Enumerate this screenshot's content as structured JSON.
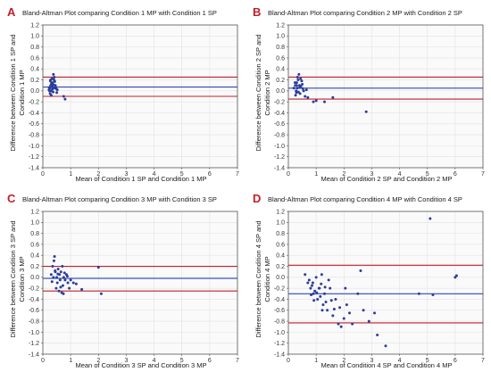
{
  "colors": {
    "background": "#ffffff",
    "plot_background": "#fafafa",
    "frame": "#555555",
    "grid": "#e2e2e2",
    "points": "#2b3d9a",
    "mean_line": "#2f48b5",
    "limit_line": "#c0202a",
    "letter": "#c0202a"
  },
  "chart_data": [
    {
      "letter": "A",
      "type": "scatter",
      "title": "Bland-Altman Plot comparing Condition 1 MP with Condition 1 SP",
      "xlabel": "Mean of Condition 1 SP and Condition 1 MP",
      "ylabel": [
        "Difference between Condition 1 SP and",
        "Condition 1 MP"
      ],
      "xlim": [
        0,
        7
      ],
      "ylim": [
        -1.4,
        1.2
      ],
      "xticks": [
        0,
        1,
        2,
        3,
        4,
        5,
        6,
        7
      ],
      "yticks": [
        1.2,
        1.0,
        0.8,
        0.6,
        0.4,
        0.2,
        0.0,
        -0.2,
        -0.4,
        -0.6,
        -0.8,
        -1.0,
        -1.2,
        -1.4
      ],
      "ytick_labels": [
        "1.2",
        "1.0",
        "0.8",
        "0.6",
        "0.4",
        "0.2",
        "0.0",
        "-0.2",
        "-0.4",
        "-0.6",
        "-0.8",
        "-1.0",
        "-1.2",
        "-1.4"
      ],
      "grid": true,
      "mean_diff": 0.07,
      "upper_loa": 0.25,
      "lower_loa": -0.1,
      "points": [
        [
          0.22,
          0.02
        ],
        [
          0.25,
          0.05
        ],
        [
          0.28,
          0.1
        ],
        [
          0.3,
          0.0
        ],
        [
          0.32,
          0.08
        ],
        [
          0.35,
          0.15
        ],
        [
          0.38,
          0.3
        ],
        [
          0.4,
          0.2
        ],
        [
          0.42,
          0.05
        ],
        [
          0.26,
          -0.05
        ],
        [
          0.3,
          -0.08
        ],
        [
          0.35,
          0.12
        ],
        [
          0.45,
          0.1
        ],
        [
          0.48,
          0.04
        ],
        [
          0.33,
          0.22
        ],
        [
          0.27,
          0.18
        ],
        [
          0.24,
          0.0
        ],
        [
          0.36,
          0.06
        ],
        [
          0.41,
          0.25
        ],
        [
          0.29,
          0.09
        ],
        [
          0.37,
          -0.02
        ],
        [
          0.31,
          0.14
        ],
        [
          0.43,
          0.17
        ],
        [
          0.34,
          0.03
        ],
        [
          0.39,
          0.11
        ],
        [
          0.46,
          0.07
        ],
        [
          0.23,
          0.06
        ],
        [
          0.28,
          0.2
        ],
        [
          0.52,
          0.02
        ],
        [
          0.8,
          -0.15
        ],
        [
          0.75,
          -0.1
        ],
        [
          0.5,
          -0.03
        ]
      ]
    },
    {
      "letter": "B",
      "type": "scatter",
      "title": "Bland-Altman Plot comparing Condition 2 MP with Condition 2 SP",
      "xlabel": "Mean of Condition 2 SP and Condition 2 MP",
      "ylabel": [
        "Difference between Condition 2 SP and",
        "Condition 2 MP"
      ],
      "xlim": [
        0,
        7
      ],
      "ylim": [
        -1.4,
        1.2
      ],
      "xticks": [
        0,
        1,
        2,
        3,
        4,
        5,
        6,
        7
      ],
      "yticks": [
        1.2,
        1.0,
        0.8,
        0.6,
        0.4,
        0.2,
        0.0,
        -0.2,
        -0.4,
        -0.6,
        -0.8,
        -1.0,
        -1.2,
        -1.4
      ],
      "ytick_labels": [
        "1.2",
        "1.0",
        "0.8",
        "0.6",
        "0.4",
        "0.2",
        "0.0",
        "-0.2",
        "-0.4",
        "-0.6",
        "-0.8",
        "-1.0",
        "-1.2",
        "-1.4"
      ],
      "grid": true,
      "mean_diff": 0.05,
      "upper_loa": 0.25,
      "lower_loa": -0.15,
      "points": [
        [
          0.2,
          0.05
        ],
        [
          0.25,
          0.1
        ],
        [
          0.28,
          0.0
        ],
        [
          0.3,
          0.15
        ],
        [
          0.32,
          0.05
        ],
        [
          0.35,
          0.2
        ],
        [
          0.38,
          0.3
        ],
        [
          0.4,
          0.1
        ],
        [
          0.42,
          -0.05
        ],
        [
          0.45,
          0.08
        ],
        [
          0.5,
          0.12
        ],
        [
          0.55,
          0.0
        ],
        [
          0.6,
          -0.1
        ],
        [
          0.26,
          -0.08
        ],
        [
          0.33,
          0.25
        ],
        [
          0.36,
          -0.02
        ],
        [
          0.48,
          0.18
        ],
        [
          0.7,
          -0.12
        ],
        [
          0.9,
          -0.2
        ],
        [
          1.0,
          -0.18
        ],
        [
          1.3,
          -0.2
        ],
        [
          1.6,
          -0.12
        ],
        [
          2.8,
          -0.38
        ],
        [
          0.3,
          0.1
        ],
        [
          0.41,
          0.06
        ],
        [
          0.52,
          0.04
        ],
        [
          0.24,
          0.15
        ],
        [
          0.29,
          -0.03
        ],
        [
          0.44,
          0.22
        ],
        [
          0.65,
          0.02
        ]
      ]
    },
    {
      "letter": "C",
      "type": "scatter",
      "title": "Bland-Altman Plot comparing Condition 3 MP with Condition 3 SP",
      "xlabel": "Mean of Condition 3 SP and Condition 3 MP",
      "ylabel": [
        "Difference between Condition 3 SP and",
        "Condition 3 MP"
      ],
      "xlim": [
        0,
        7
      ],
      "ylim": [
        -1.4,
        1.2
      ],
      "xticks": [
        0,
        1,
        2,
        3,
        4,
        5,
        6,
        7
      ],
      "yticks": [
        1.2,
        1.0,
        0.8,
        0.6,
        0.4,
        0.2,
        0.0,
        -0.2,
        -0.4,
        -0.6,
        -0.8,
        -1.0,
        -1.2,
        -1.4
      ],
      "ytick_labels": [
        "1.2",
        "1.0",
        "0.8",
        "0.6",
        "0.4",
        "0.2",
        "0.0",
        "-0.2",
        "-0.4",
        "-0.6",
        "-0.8",
        "-1.0",
        "-1.2",
        "-1.4"
      ],
      "grid": true,
      "mean_diff": -0.02,
      "upper_loa": 0.2,
      "lower_loa": -0.25,
      "points": [
        [
          0.3,
          0.05
        ],
        [
          0.35,
          0.2
        ],
        [
          0.4,
          0.3
        ],
        [
          0.42,
          0.38
        ],
        [
          0.45,
          0.1
        ],
        [
          0.5,
          0.0
        ],
        [
          0.52,
          -0.1
        ],
        [
          0.55,
          0.15
        ],
        [
          0.6,
          0.05
        ],
        [
          0.62,
          -0.05
        ],
        [
          0.65,
          0.1
        ],
        [
          0.7,
          0.2
        ],
        [
          0.72,
          -0.15
        ],
        [
          0.75,
          0.0
        ],
        [
          0.8,
          -0.05
        ],
        [
          0.85,
          0.05
        ],
        [
          0.9,
          -0.1
        ],
        [
          0.95,
          -0.2
        ],
        [
          1.0,
          -0.05
        ],
        [
          1.1,
          -0.1
        ],
        [
          1.2,
          -0.12
        ],
        [
          0.48,
          -0.2
        ],
        [
          0.58,
          -0.25
        ],
        [
          0.68,
          -0.28
        ],
        [
          0.38,
          0.0
        ],
        [
          0.33,
          -0.08
        ],
        [
          0.44,
          0.12
        ],
        [
          0.54,
          0.06
        ],
        [
          0.78,
          0.08
        ],
        [
          0.88,
          0.02
        ],
        [
          2.0,
          0.18
        ],
        [
          2.1,
          -0.3
        ],
        [
          1.4,
          -0.22
        ],
        [
          0.64,
          -0.18
        ],
        [
          0.74,
          -0.3
        ]
      ]
    },
    {
      "letter": "D",
      "type": "scatter",
      "title": "Bland-Altman Plot comparing Condition 4 MP with Condition 4 SP",
      "xlabel": "Mean of Condition 4 SP and Condition 4 MP",
      "ylabel": [
        "Difference between Condition 4 SP and",
        "Condition 4 MP"
      ],
      "xlim": [
        0,
        7
      ],
      "ylim": [
        -1.4,
        1.2
      ],
      "xticks": [
        0,
        1,
        2,
        3,
        4,
        5,
        6,
        7
      ],
      "yticks": [
        1.2,
        1.0,
        0.8,
        0.6,
        0.4,
        0.2,
        0.0,
        -0.2,
        -0.4,
        -0.6,
        -0.8,
        -1.0,
        -1.2,
        -1.4
      ],
      "ytick_labels": [
        "1.2",
        "1.0",
        "0.8",
        "0.6",
        "0.4",
        "0.2",
        "0.0",
        "-0.2",
        "-0.4",
        "-0.6",
        "-0.8",
        "-1.0",
        "-1.2",
        "-1.4"
      ],
      "grid": true,
      "mean_diff": -0.3,
      "upper_loa": 0.22,
      "lower_loa": -0.83,
      "points": [
        [
          0.6,
          0.05
        ],
        [
          0.7,
          -0.1
        ],
        [
          0.8,
          -0.2
        ],
        [
          0.85,
          -0.15
        ],
        [
          0.9,
          -0.3
        ],
        [
          0.95,
          -0.25
        ],
        [
          1.0,
          0.0
        ],
        [
          1.05,
          -0.4
        ],
        [
          1.1,
          -0.2
        ],
        [
          1.15,
          -0.35
        ],
        [
          1.2,
          0.05
        ],
        [
          1.25,
          -0.5
        ],
        [
          1.3,
          -0.3
        ],
        [
          1.35,
          -0.45
        ],
        [
          1.4,
          -0.6
        ],
        [
          1.5,
          -0.2
        ],
        [
          1.6,
          -0.7
        ],
        [
          1.7,
          -0.4
        ],
        [
          1.8,
          -0.85
        ],
        [
          1.85,
          -0.55
        ],
        [
          1.9,
          -0.9
        ],
        [
          2.0,
          -0.75
        ],
        [
          2.1,
          -0.5
        ],
        [
          2.2,
          -0.65
        ],
        [
          2.3,
          -0.85
        ],
        [
          2.5,
          -0.3
        ],
        [
          2.6,
          0.12
        ],
        [
          2.7,
          -0.6
        ],
        [
          2.9,
          -0.8
        ],
        [
          3.1,
          -0.65
        ],
        [
          3.2,
          -1.05
        ],
        [
          3.5,
          -1.25
        ],
        [
          4.7,
          -0.3
        ],
        [
          5.1,
          1.07
        ],
        [
          5.2,
          -0.32
        ],
        [
          6.0,
          0.0
        ],
        [
          6.05,
          0.03
        ],
        [
          0.75,
          -0.05
        ],
        [
          0.88,
          -0.1
        ],
        [
          1.02,
          -0.28
        ],
        [
          1.18,
          -0.12
        ],
        [
          1.45,
          -0.05
        ],
        [
          1.22,
          -0.6
        ],
        [
          0.92,
          -0.42
        ],
        [
          1.65,
          -0.58
        ],
        [
          2.05,
          -0.2
        ],
        [
          1.12,
          -0.2
        ],
        [
          0.82,
          -0.32
        ],
        [
          1.32,
          -0.18
        ],
        [
          1.55,
          -0.42
        ]
      ]
    }
  ]
}
